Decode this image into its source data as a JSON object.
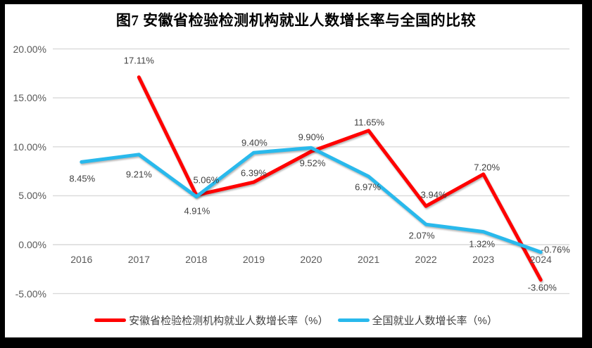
{
  "chart_data": {
    "type": "line",
    "title": "图7  安徽省检验检测机构就业人数增长率与全国的比较",
    "categories": [
      "2016",
      "2017",
      "2018",
      "2019",
      "2020",
      "2021",
      "2022",
      "2023",
      "2024"
    ],
    "series": [
      {
        "name": "安徽省检验检测机构就业人数增长率（%）",
        "color": "#FF0000",
        "start_index": 1,
        "values": [
          17.11,
          5.06,
          6.39,
          9.52,
          11.65,
          3.94,
          7.2,
          -3.6
        ],
        "point_labels": [
          "17.11%",
          "5.06%",
          "6.39%",
          "9.52%",
          "11.65%",
          "3.94%",
          "7.20%",
          "-3.60%"
        ]
      },
      {
        "name": "全国就业人数增长率（%）",
        "color": "#29B9EC",
        "start_index": 0,
        "values": [
          8.45,
          9.21,
          4.91,
          9.4,
          9.9,
          6.97,
          2.07,
          1.32,
          -0.76
        ],
        "point_labels": [
          "8.45%",
          "9.21%",
          "4.91%",
          "9.40%",
          "9.90%",
          "6.97%",
          "2.07%",
          "1.32%",
          "-0.76%"
        ]
      }
    ],
    "y_axis": {
      "ticks": [
        "20.00%",
        "15.00%",
        "10.00%",
        "5.00%",
        "0.00%",
        "-5.00%"
      ],
      "tick_values": [
        20,
        15,
        10,
        5,
        0,
        -5
      ],
      "min": -5,
      "max": 20
    },
    "grid": true,
    "legend_position": "bottom",
    "colors": {
      "grid": "#D9D9D9",
      "axis_text": "#595959",
      "data_label_text": "#404040",
      "title_text": "#000000",
      "background": "#FFFFFF",
      "frame_border": "#000000"
    }
  }
}
